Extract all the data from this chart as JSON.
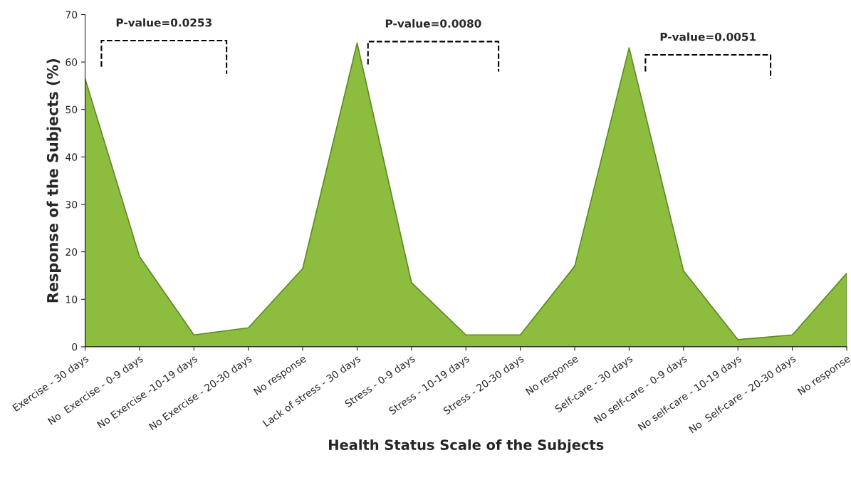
{
  "chart_data": {
    "type": "area",
    "xlabel": "Health Status Scale of the Subjects",
    "ylabel": "Response of the Subjects (%)",
    "categories": [
      "Exercise - 30 days",
      "No  Exercise - 0-9 days",
      "No Exercise -10-19 days",
      "No Exercise - 20-30 days",
      "No response",
      "Lack of stress - 30 days",
      "Stress - 0-9 days",
      "Stress - 10-19 days",
      "Stress - 20-30 days",
      "No response",
      "Self-care - 30 days",
      "No self-care - 0-9 days",
      "No self-care - 10-19 days",
      "No  Self-care - 20-30 days",
      "No response"
    ],
    "series": [
      {
        "color": "#8cbd3f",
        "values": [
          56.5,
          19,
          2.5,
          4,
          16.5,
          64,
          13.5,
          2.5,
          2.5,
          17,
          63,
          16,
          1.5,
          2.5,
          15.5
        ]
      }
    ],
    "ylim": [
      0,
      70
    ],
    "yticks": [
      0,
      10,
      20,
      30,
      40,
      50,
      60,
      70
    ],
    "annotations": [
      "P-value=0.0253",
      "P-value=0.0080",
      "P-value=0.0051"
    ],
    "grid": false
  }
}
